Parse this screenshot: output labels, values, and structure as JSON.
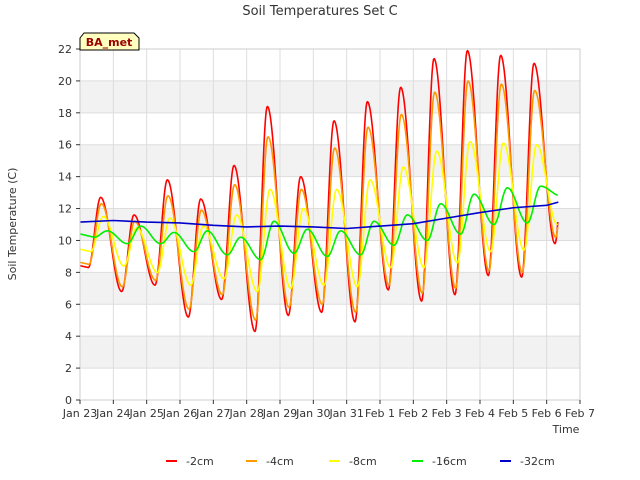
{
  "chart_data": {
    "type": "line",
    "title": "Soil Temperatures Set C",
    "xlabel": "Time",
    "ylabel": "Soil Temperature (C)",
    "badge": "BA_met",
    "ylim": [
      0,
      22
    ],
    "xlim": [
      "Jan 23",
      "Feb 7"
    ],
    "x_ticks": [
      "Jan 23",
      "Jan 24",
      "Jan 25",
      "Jan 26",
      "Jan 27",
      "Jan 28",
      "Jan 29",
      "Jan 30",
      "Jan 31",
      "Feb 1",
      "Feb 2",
      "Feb 3",
      "Feb 4",
      "Feb 5",
      "Feb 6",
      "Feb 7"
    ],
    "y_ticks": [
      0,
      2,
      4,
      6,
      8,
      10,
      12,
      14,
      16,
      18,
      20,
      22
    ],
    "grid": true,
    "legend_position": "bottom",
    "series": [
      {
        "name": "-2cm",
        "color": "#ff0000",
        "daily_min": [
          8.3,
          6.8,
          7.2,
          5.2,
          6.3,
          4.3,
          5.3,
          5.5,
          4.9,
          6.9,
          6.2,
          6.6,
          7.8,
          7.7,
          9.8
        ],
        "daily_max": [
          12.7,
          11.6,
          13.8,
          12.6,
          14.7,
          18.4,
          14.0,
          17.5,
          18.7,
          19.6,
          21.4,
          21.9,
          21.6,
          21.1
        ]
      },
      {
        "name": "-4cm",
        "color": "#ff9900",
        "daily_min": [
          8.5,
          7.1,
          7.5,
          5.7,
          6.6,
          5.0,
          5.8,
          6.0,
          5.5,
          7.2,
          6.7,
          7.0,
          8.1,
          8.0,
          10.2
        ],
        "daily_max": [
          12.3,
          11.2,
          12.8,
          11.9,
          13.5,
          16.5,
          13.2,
          15.8,
          17.1,
          17.9,
          19.3,
          20.0,
          19.8,
          19.4
        ]
      },
      {
        "name": "-8cm",
        "color": "#ffff00",
        "daily_min": [
          9.3,
          8.4,
          8.0,
          7.2,
          7.6,
          6.8,
          7.0,
          7.2,
          7.1,
          8.3,
          8.3,
          8.6,
          9.3,
          9.4,
          11.0
        ],
        "daily_max": [
          11.5,
          10.8,
          11.4,
          10.9,
          11.6,
          13.2,
          12.0,
          13.2,
          13.8,
          14.6,
          15.6,
          16.2,
          16.1,
          16.0
        ]
      },
      {
        "name": "-16cm",
        "color": "#00ee00",
        "daily_min": [
          10.2,
          9.8,
          9.8,
          9.3,
          9.1,
          8.8,
          9.2,
          9.0,
          9.1,
          9.7,
          10.0,
          10.4,
          11.0,
          11.1,
          12.8
        ],
        "daily_max": [
          10.6,
          10.9,
          10.5,
          10.6,
          10.2,
          11.2,
          10.7,
          10.6,
          11.2,
          11.6,
          12.3,
          12.9,
          13.3,
          13.4,
          13.6
        ]
      },
      {
        "name": "-32cm",
        "color": "#0000cc",
        "points": [
          [
            0,
            11.15
          ],
          [
            1,
            11.25
          ],
          [
            2,
            11.15
          ],
          [
            3,
            11.1
          ],
          [
            4,
            10.95
          ],
          [
            5,
            10.85
          ],
          [
            6,
            10.9
          ],
          [
            7,
            10.85
          ],
          [
            8,
            10.75
          ],
          [
            9,
            10.9
          ],
          [
            10,
            11.05
          ],
          [
            11,
            11.4
          ],
          [
            12,
            11.75
          ],
          [
            13,
            12.05
          ],
          [
            14,
            12.2
          ],
          [
            14.35,
            12.4
          ]
        ]
      }
    ]
  }
}
